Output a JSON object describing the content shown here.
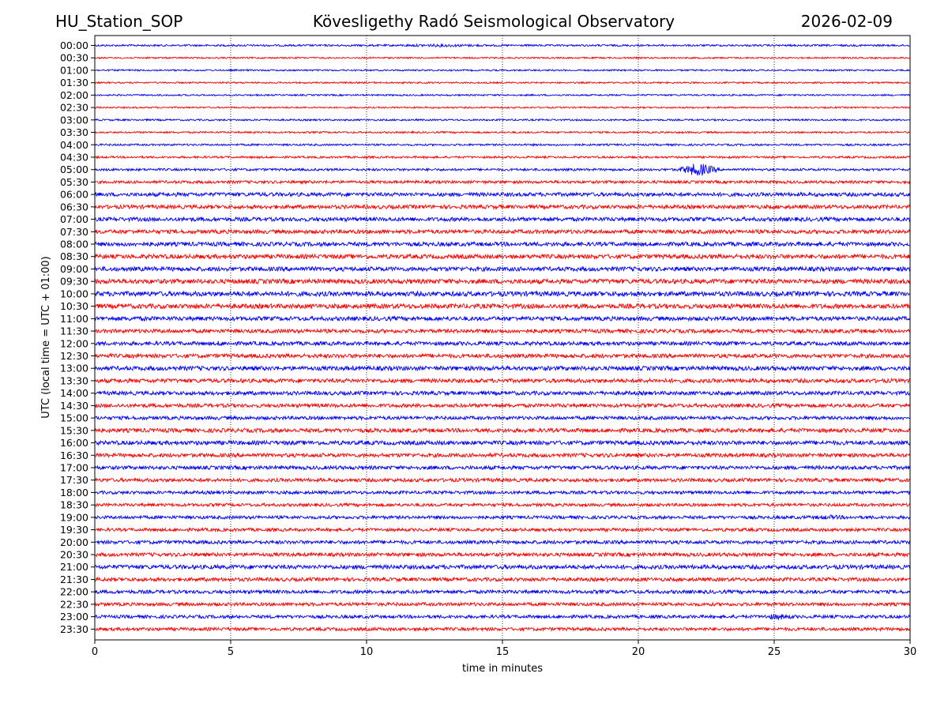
{
  "header": {
    "station": "HU_Station_SOP",
    "observatory": "Kövesligethy Radó Seismological Observatory",
    "date": "2026-02-09"
  },
  "chart_data": {
    "type": "line",
    "title": "Kövesligethy Radó Seismological Observatory",
    "xlabel": "time in minutes",
    "ylabel": "UTC (local time = UTC + 01:00)",
    "xlim": [
      0,
      30
    ],
    "xticks": [
      0,
      5,
      10,
      15,
      20,
      25,
      30
    ],
    "grid": "vertical dotted at x ticks",
    "colors": {
      "even": "#0000ff",
      "odd": "#ff0000",
      "grid": "#000000"
    },
    "rows": [
      "00:00",
      "00:30",
      "01:00",
      "01:30",
      "02:00",
      "02:30",
      "03:00",
      "03:30",
      "04:00",
      "04:30",
      "05:00",
      "05:30",
      "06:00",
      "06:30",
      "07:00",
      "07:30",
      "08:00",
      "08:30",
      "09:00",
      "09:30",
      "10:00",
      "10:30",
      "11:00",
      "11:30",
      "12:00",
      "12:30",
      "13:00",
      "13:30",
      "14:00",
      "14:30",
      "15:00",
      "15:30",
      "16:00",
      "16:30",
      "17:00",
      "17:30",
      "18:00",
      "18:30",
      "19:00",
      "19:30",
      "20:00",
      "20:30",
      "21:00",
      "21:30",
      "22:00",
      "22:30",
      "23:00",
      "23:30"
    ],
    "noise_level": [
      1.2,
      1.0,
      1.0,
      1.0,
      1.0,
      1.0,
      1.1,
      1.1,
      1.2,
      1.3,
      1.5,
      1.8,
      2.4,
      2.4,
      2.5,
      2.5,
      2.6,
      2.7,
      2.7,
      2.9,
      3.0,
      2.9,
      2.6,
      2.4,
      2.4,
      2.5,
      2.7,
      2.5,
      2.4,
      2.3,
      2.2,
      2.5,
      2.6,
      2.4,
      2.3,
      2.2,
      2.0,
      1.9,
      2.0,
      2.0,
      2.2,
      2.3,
      2.6,
      2.3,
      2.2,
      2.1,
      2.0,
      2.0
    ],
    "events": [
      {
        "row": "00:00",
        "start_min": 11.0,
        "end_min": 14.5,
        "amp": 2.0
      },
      {
        "row": "05:00",
        "start_min": 21.4,
        "end_min": 23.0,
        "amp": 9.0
      },
      {
        "row": "06:00",
        "start_min": 5.5,
        "end_min": 7.0,
        "amp": 2.5
      },
      {
        "row": "07:00",
        "start_min": 10.5,
        "end_min": 12.8,
        "amp": 2.5
      },
      {
        "row": "09:30",
        "start_min": 23.0,
        "end_min": 27.0,
        "amp": 2.5
      },
      {
        "row": "10:00",
        "start_min": 0.6,
        "end_min": 1.2,
        "amp": 3.0
      },
      {
        "row": "11:00",
        "start_min": 0.8,
        "end_min": 2.3,
        "amp": 3.0
      },
      {
        "row": "12:00",
        "start_min": 4.5,
        "end_min": 4.7,
        "amp": 4.0
      },
      {
        "row": "13:00",
        "start_min": 5.5,
        "end_min": 7.5,
        "amp": 2.5
      },
      {
        "row": "15:30",
        "start_min": 14.5,
        "end_min": 17.5,
        "amp": 2.5
      },
      {
        "row": "19:00",
        "start_min": 26.3,
        "end_min": 27.8,
        "amp": 3.0
      },
      {
        "row": "21:00",
        "start_min": 16.8,
        "end_min": 19.0,
        "amp": 2.5
      },
      {
        "row": "23:00",
        "start_min": 24.5,
        "end_min": 25.8,
        "amp": 4.0
      }
    ]
  }
}
